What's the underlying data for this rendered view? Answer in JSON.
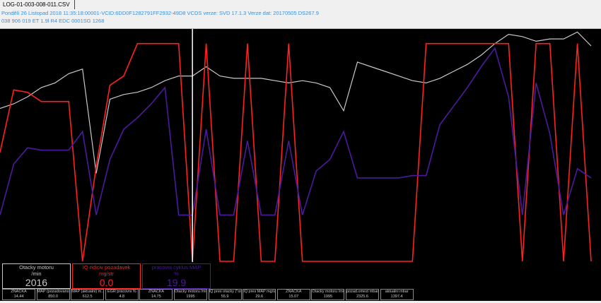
{
  "tab": {
    "label": "LOG-01-003-008-011.CSV"
  },
  "info": {
    "line1": "Pondělí 26 Listopad 2018 11:35:18:00001-VCID:6DD0F1282791FF2932-49D8 VCDS  verze: SVD 17.1.3 Verze dat: 20170505 DS267.9",
    "line2": "038 906 019 ET  1.9l R4 EDC 0001SG  1268"
  },
  "colors": {
    "rpm": "#c8c8c8",
    "iq": "#ff2020",
    "map": "#4b1a9e",
    "cursor": "#ffffff",
    "background": "#000000"
  },
  "chart_data": {
    "type": "line",
    "ylim": [
      0,
      100
    ],
    "cursor_index": 14,
    "series": [
      {
        "key": "rpm",
        "values": [
          66,
          68,
          71,
          75,
          77,
          81,
          83,
          38,
          70,
          72,
          73,
          75,
          78,
          80,
          80,
          84,
          80,
          79,
          79,
          79,
          78,
          77,
          78,
          77,
          75,
          65,
          86,
          84,
          82,
          80,
          78,
          77,
          79,
          82,
          85,
          89,
          94,
          98,
          97,
          95,
          96,
          96,
          99,
          93
        ]
      },
      {
        "key": "iq",
        "values": [
          47,
          74,
          73,
          69,
          69,
          69,
          0,
          41,
          76,
          80,
          94,
          94,
          94,
          94,
          0,
          94,
          0,
          0,
          94,
          0,
          0,
          94,
          0,
          0,
          0,
          0,
          0,
          0,
          0,
          0,
          0,
          94,
          94,
          94,
          94,
          94,
          94,
          94,
          0,
          94,
          94,
          0,
          94,
          0
        ]
      },
      {
        "key": "map",
        "values": [
          20,
          42,
          49,
          48,
          48,
          48,
          56,
          20,
          44,
          57,
          62,
          68,
          75,
          20,
          20,
          57,
          20,
          20,
          52,
          20,
          20,
          52,
          20,
          39,
          44,
          56,
          36,
          36,
          36,
          36,
          37,
          37,
          59,
          67,
          75,
          84,
          92,
          71,
          20,
          77,
          55,
          20,
          40,
          36
        ]
      }
    ]
  },
  "gauges": [
    {
      "title": "Otacky motoru",
      "unit": "/min",
      "value": "2016",
      "color": "#c8c8c8"
    },
    {
      "title": "IQ ridiciv pozadavek",
      "unit": "mg/str",
      "value": "0.0",
      "color": "#ff2020"
    },
    {
      "title": "pracovni cyklus MAP",
      "unit": "%",
      "value": "19.9",
      "color": "#4b1a9e"
    }
  ],
  "tiles": [
    {
      "label": "ZNAČKA",
      "value": "14.44"
    },
    {
      "label": "MAP (pozadovano...",
      "value": "850.0"
    },
    {
      "label": "MAP (aktualni) m...",
      "value": "612.5"
    },
    {
      "label": "EGR pracovni %",
      "value": "4.8"
    },
    {
      "label": "ZNAČKA",
      "value": "14.75"
    },
    {
      "label": "Otacky motoru /min",
      "value": "1995"
    },
    {
      "label": "IQ pres otacky (\"or...",
      "value": "55.9"
    },
    {
      "label": "IQ pres MAP mg/str",
      "value": "29.6"
    },
    {
      "label": "ZNAČKA",
      "value": "15.07"
    },
    {
      "label": "Otacky motoru /min",
      "value": "1995"
    },
    {
      "label": "pozad.omezi mbar",
      "value": "2325.6"
    },
    {
      "label": "aktualni mbar",
      "value": "1397.4"
    }
  ]
}
